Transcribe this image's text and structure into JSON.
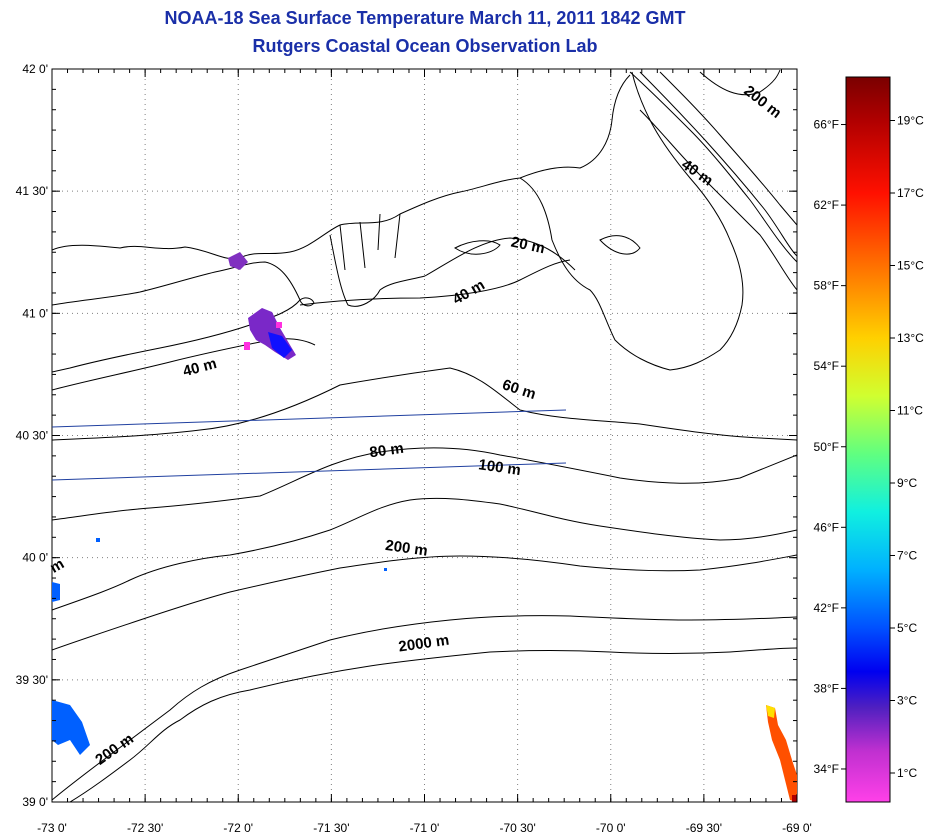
{
  "title_line1": "NOAA-18 Sea Surface Temperature March 11, 2011 1842 GMT",
  "title_line2": "Rutgers Coastal Ocean Observation Lab",
  "lat_labels": [
    "42 0'",
    "41 30'",
    "41 0'",
    "40 30'",
    "40 0'",
    "39 30'",
    "39 0'"
  ],
  "lon_labels": [
    "-73 0'",
    "-72 30'",
    "-72 0'",
    "-71 30'",
    "-71 0'",
    "-70 30'",
    "-70 0'",
    "-69 30'",
    "-69 0'"
  ],
  "contour_labels": [
    {
      "text": "200 m",
      "lon": -69.2,
      "lat": 41.85,
      "rot": 38
    },
    {
      "text": "40 m",
      "lon": -69.55,
      "lat": 41.56,
      "rot": 35
    },
    {
      "text": "20 m",
      "lon": -70.45,
      "lat": 41.26,
      "rot": 12
    },
    {
      "text": "40 m",
      "lon": -70.75,
      "lat": 41.07,
      "rot": -30
    },
    {
      "text": "40 m",
      "lon": -72.2,
      "lat": 40.76,
      "rot": -15
    },
    {
      "text": "60 m",
      "lon": -70.5,
      "lat": 40.67,
      "rot": 18
    },
    {
      "text": "80 m",
      "lon": -71.2,
      "lat": 40.42,
      "rot": -8
    },
    {
      "text": "100 m",
      "lon": -70.6,
      "lat": 40.35,
      "rot": 8
    },
    {
      "text": "200 m",
      "lon": -71.1,
      "lat": 40.02,
      "rot": 8
    },
    {
      "text": "2000 m",
      "lon": -71.0,
      "lat": 39.63,
      "rot": -8
    },
    {
      "text": "200 m",
      "lon": -72.65,
      "lat": 39.2,
      "rot": -35
    },
    {
      "text": "m",
      "lon": -72.96,
      "lat": 39.95,
      "rot": -30
    }
  ],
  "colorbar": {
    "celsius": [
      "19°C",
      "17°C",
      "15°C",
      "13°C",
      "11°C",
      "9°C",
      "7°C",
      "5°C",
      "3°C",
      "1°C"
    ],
    "fahrenheit": [
      "66°F",
      "62°F",
      "58°F",
      "54°F",
      "50°F",
      "46°F",
      "42°F",
      "38°F",
      "34°F"
    ],
    "colors": [
      "#800000",
      "#c80000",
      "#ff2000",
      "#ff7000",
      "#ffc000",
      "#e8ff20",
      "#80ff60",
      "#20ffc0",
      "#00c8ff",
      "#0060ff",
      "#0000ff",
      "#6020c0",
      "#b030d0",
      "#ff40e0"
    ]
  }
}
